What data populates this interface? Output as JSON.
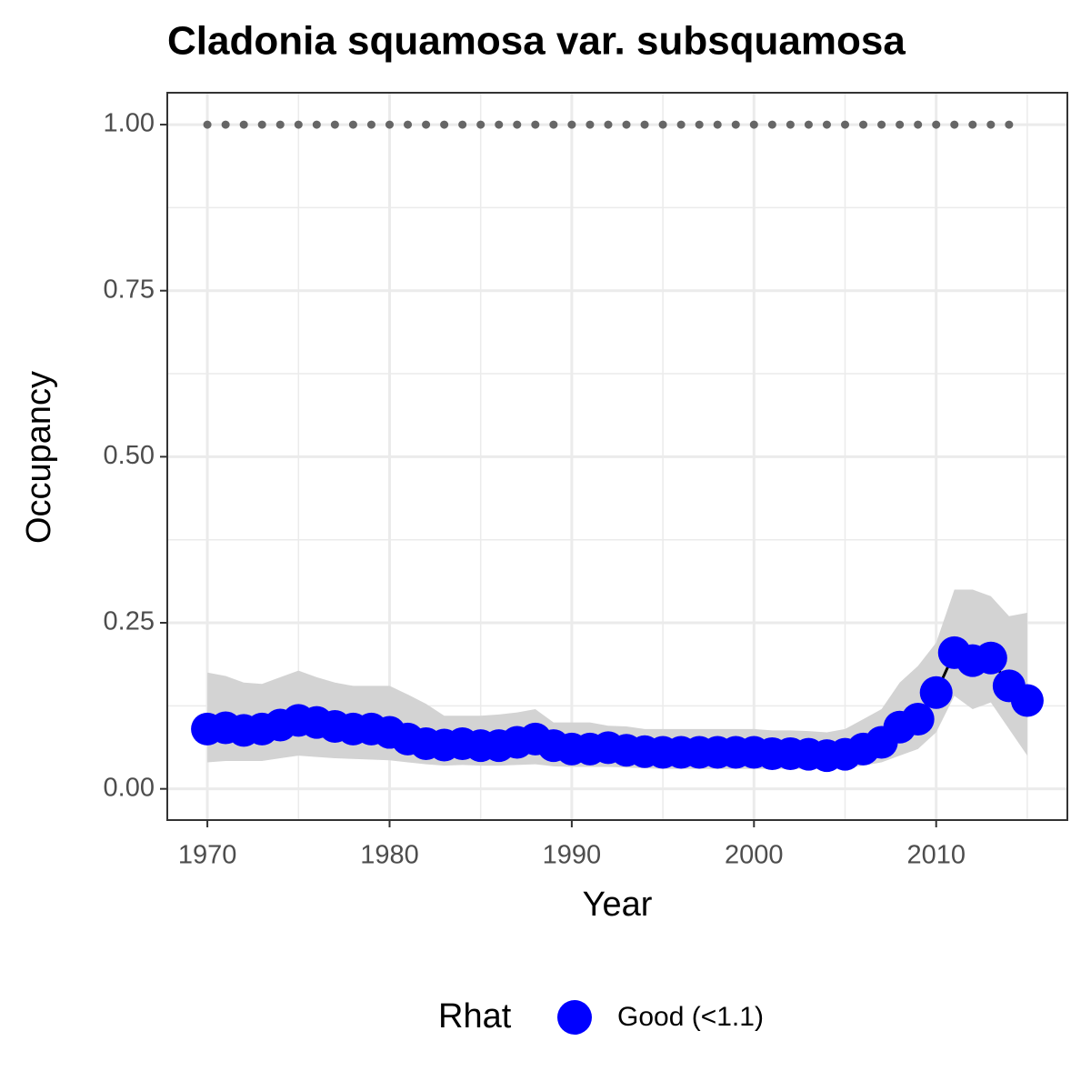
{
  "chart_data": {
    "type": "line",
    "title": "Cladonia squamosa var. subsquamosa",
    "x_label": "Year",
    "y_label": "Occupancy",
    "x": [
      1970,
      1971,
      1972,
      1973,
      1974,
      1975,
      1976,
      1977,
      1978,
      1979,
      1980,
      1981,
      1982,
      1983,
      1984,
      1985,
      1986,
      1987,
      1988,
      1989,
      1990,
      1991,
      1992,
      1993,
      1994,
      1995,
      1996,
      1997,
      1998,
      1999,
      2000,
      2001,
      2002,
      2003,
      2004,
      2005,
      2006,
      2007,
      2008,
      2009,
      2010,
      2011,
      2012,
      2013,
      2014,
      2015
    ],
    "series": [
      {
        "name": "Good (<1.1)",
        "color": "#0000ff",
        "line_color": "#000000",
        "values": [
          0.09,
          0.092,
          0.088,
          0.09,
          0.096,
          0.103,
          0.1,
          0.094,
          0.09,
          0.09,
          0.085,
          0.075,
          0.068,
          0.066,
          0.068,
          0.065,
          0.065,
          0.07,
          0.075,
          0.065,
          0.06,
          0.06,
          0.062,
          0.058,
          0.056,
          0.055,
          0.055,
          0.055,
          0.055,
          0.055,
          0.055,
          0.053,
          0.053,
          0.052,
          0.05,
          0.052,
          0.06,
          0.07,
          0.093,
          0.105,
          0.145,
          0.205,
          0.193,
          0.197,
          0.155,
          0.133
        ],
        "upper": [
          0.175,
          0.17,
          0.16,
          0.158,
          0.168,
          0.178,
          0.168,
          0.16,
          0.155,
          0.155,
          0.155,
          0.142,
          0.128,
          0.11,
          0.11,
          0.11,
          0.112,
          0.115,
          0.12,
          0.1,
          0.1,
          0.1,
          0.095,
          0.094,
          0.09,
          0.09,
          0.09,
          0.09,
          0.09,
          0.09,
          0.09,
          0.088,
          0.088,
          0.087,
          0.085,
          0.09,
          0.105,
          0.12,
          0.16,
          0.185,
          0.22,
          0.3,
          0.3,
          0.29,
          0.26,
          0.265
        ],
        "lower": [
          0.04,
          0.042,
          0.042,
          0.042,
          0.046,
          0.05,
          0.048,
          0.046,
          0.045,
          0.044,
          0.043,
          0.04,
          0.037,
          0.035,
          0.036,
          0.035,
          0.035,
          0.036,
          0.037,
          0.034,
          0.033,
          0.033,
          0.033,
          0.032,
          0.031,
          0.03,
          0.03,
          0.03,
          0.03,
          0.03,
          0.03,
          0.03,
          0.03,
          0.03,
          0.03,
          0.031,
          0.035,
          0.04,
          0.05,
          0.06,
          0.085,
          0.14,
          0.12,
          0.13,
          0.09,
          0.05
        ]
      }
    ],
    "band_color": "#d3d3d3",
    "dots": {
      "color": "#666666",
      "x": [
        1970,
        1971,
        1972,
        1973,
        1974,
        1975,
        1976,
        1977,
        1978,
        1979,
        1980,
        1981,
        1982,
        1983,
        1984,
        1985,
        1986,
        1987,
        1988,
        1989,
        1990,
        1991,
        1992,
        1993,
        1994,
        1995,
        1996,
        1997,
        1998,
        1999,
        2000,
        2001,
        2002,
        2003,
        2004,
        2005,
        2006,
        2007,
        2008,
        2009,
        2010,
        2011,
        2012,
        2013,
        2014
      ],
      "values": [
        1,
        1,
        1,
        1,
        1,
        1,
        1,
        1,
        1,
        1,
        1,
        1,
        1,
        1,
        1,
        1,
        1,
        1,
        1,
        1,
        1,
        1,
        1,
        1,
        1,
        1,
        1,
        1,
        1,
        1,
        1,
        1,
        1,
        1,
        1,
        1,
        1,
        1,
        1,
        1,
        1,
        1,
        1,
        1,
        1
      ]
    },
    "xlim": [
      1967.8,
      2017.2
    ],
    "xticks": [
      1970,
      1980,
      1990,
      2000,
      2010
    ],
    "minor_xticks": [
      1975,
      1985,
      1995,
      2005,
      2015
    ],
    "ylim": [
      -0.047,
      1.048
    ],
    "yticks": [
      {
        "value": 0,
        "label": "0.00"
      },
      {
        "value": 0.25,
        "label": "0.25"
      },
      {
        "value": 0.5,
        "label": "0.50"
      },
      {
        "value": 0.75,
        "label": "0.75"
      },
      {
        "value": 1,
        "label": "1.00"
      }
    ],
    "minor_yticks": [
      0.125,
      0.375,
      0.625,
      0.875
    ],
    "grid": true,
    "legend": {
      "title": "Rhat",
      "position": "bottom"
    }
  }
}
